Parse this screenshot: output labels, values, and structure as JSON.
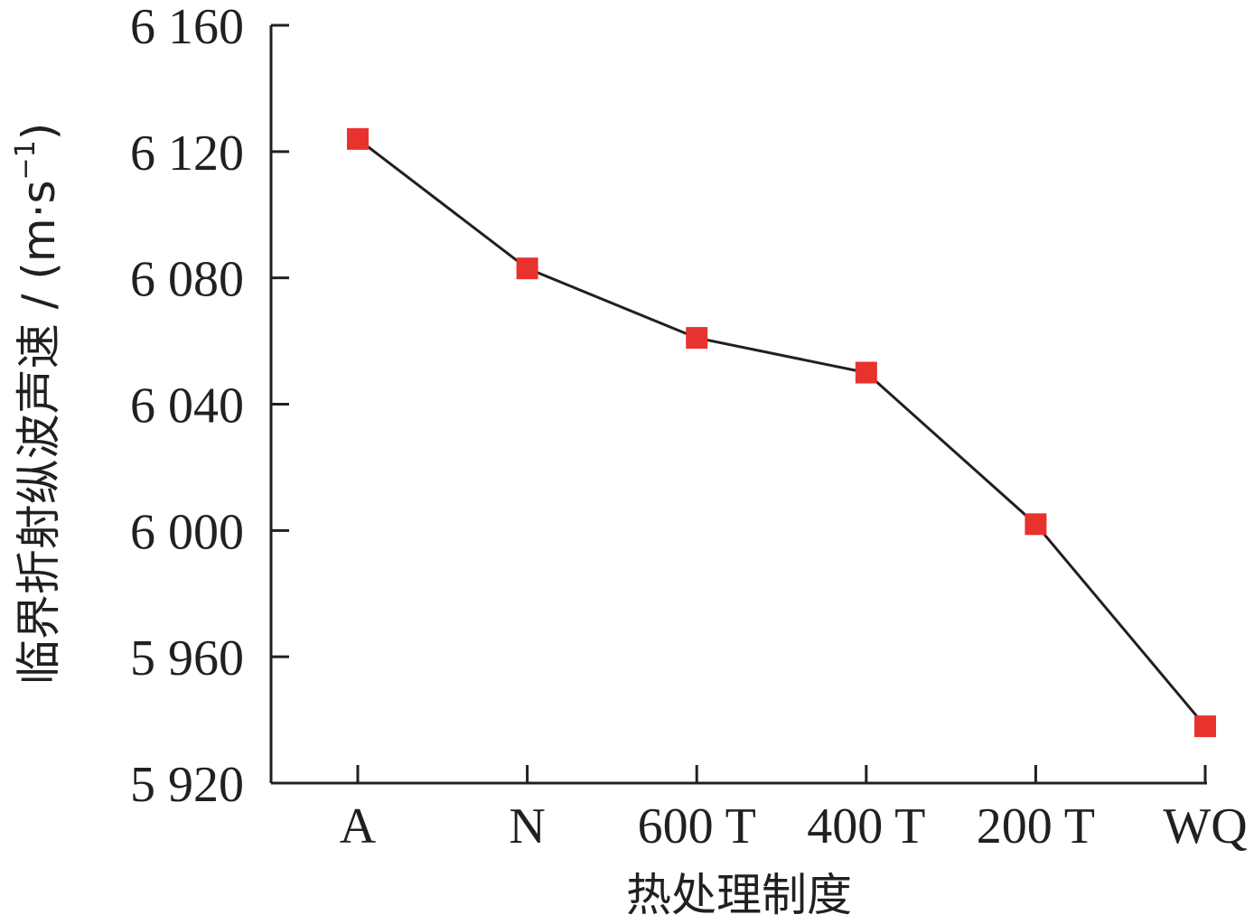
{
  "chart_data": {
    "type": "line",
    "categories": [
      "A",
      "N",
      "600 T",
      "400 T",
      "200 T",
      "WQ"
    ],
    "series": [
      {
        "values": [
          6124,
          6083,
          6061,
          6050,
          6002,
          5938
        ],
        "color": "#e8322e",
        "marker": "square",
        "line_color": "#231f20"
      }
    ],
    "xlabel": "热处理制度",
    "ylabel": "临界折射纵波声速 / (m·s",
    "ylabel_sup": "−1",
    "ylabel_close": ")",
    "ylim": [
      5920,
      6160
    ],
    "yticks": [
      5920,
      5960,
      6000,
      6040,
      6080,
      6120,
      6160
    ],
    "ytick_labels": [
      "5 920",
      "5 960",
      "6 000",
      "6 040",
      "6 080",
      "6 120",
      "6 160"
    ],
    "grid": false,
    "legend": "none"
  }
}
